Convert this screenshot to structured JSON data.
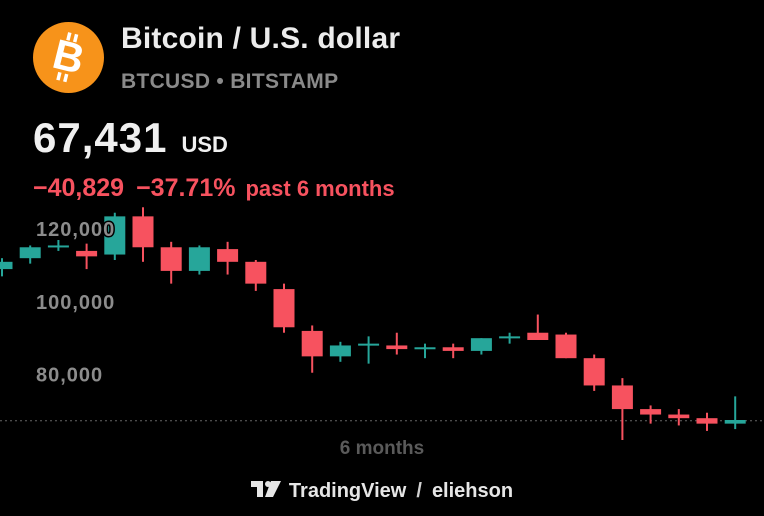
{
  "header": {
    "icon": "bitcoin-icon",
    "icon_color": "#f7931a",
    "title": "Bitcoin / U.S. dollar",
    "subtitle": "BTCUSD • BITSTAMP"
  },
  "quote": {
    "price": "67,431",
    "currency": "USD",
    "change_abs": "−40,829",
    "change_pct": "−37.71%",
    "change_period": "past 6 months",
    "change_color": "#f7525f"
  },
  "chart_data": {
    "type": "candlestick",
    "period_label": "6 months",
    "ylim": [
      62000,
      128000
    ],
    "y_ticks": [
      "120,000",
      "100,000",
      "80,000"
    ],
    "y_tick_values": [
      120000,
      100000,
      80000
    ],
    "last_price": 67431,
    "colors": {
      "up": "#26a69a",
      "down": "#f7525f"
    },
    "candles": [
      {
        "o": 109000,
        "h": 112000,
        "l": 107000,
        "c": 111000
      },
      {
        "o": 112000,
        "h": 115500,
        "l": 110500,
        "c": 115000
      },
      {
        "o": 115500,
        "h": 117000,
        "l": 114000,
        "c": 115500
      },
      {
        "o": 114000,
        "h": 116000,
        "l": 109000,
        "c": 112500
      },
      {
        "o": 113000,
        "h": 124500,
        "l": 111500,
        "c": 123500
      },
      {
        "o": 123500,
        "h": 126000,
        "l": 111000,
        "c": 115000
      },
      {
        "o": 115000,
        "h": 116500,
        "l": 105000,
        "c": 108500
      },
      {
        "o": 108500,
        "h": 115500,
        "l": 107500,
        "c": 115000
      },
      {
        "o": 114500,
        "h": 116500,
        "l": 107500,
        "c": 111000
      },
      {
        "o": 111000,
        "h": 111500,
        "l": 103000,
        "c": 105000
      },
      {
        "o": 103500,
        "h": 105000,
        "l": 91500,
        "c": 93000
      },
      {
        "o": 92000,
        "h": 93500,
        "l": 80500,
        "c": 85000
      },
      {
        "o": 85000,
        "h": 89000,
        "l": 83500,
        "c": 88000
      },
      {
        "o": 88000,
        "h": 90500,
        "l": 83000,
        "c": 88500
      },
      {
        "o": 88000,
        "h": 91500,
        "l": 85500,
        "c": 87000
      },
      {
        "o": 87000,
        "h": 88500,
        "l": 84500,
        "c": 87500
      },
      {
        "o": 87500,
        "h": 88500,
        "l": 84500,
        "c": 86500
      },
      {
        "o": 86500,
        "h": 90000,
        "l": 85500,
        "c": 90000
      },
      {
        "o": 90000,
        "h": 91500,
        "l": 88500,
        "c": 90500
      },
      {
        "o": 91500,
        "h": 96500,
        "l": 89500,
        "c": 89500
      },
      {
        "o": 91000,
        "h": 91500,
        "l": 84500,
        "c": 84500
      },
      {
        "o": 84500,
        "h": 85500,
        "l": 75500,
        "c": 77000
      },
      {
        "o": 77000,
        "h": 79000,
        "l": 59500,
        "c": 70500
      },
      {
        "o": 70500,
        "h": 71500,
        "l": 66500,
        "c": 69000
      },
      {
        "o": 69000,
        "h": 70500,
        "l": 66000,
        "c": 68000
      },
      {
        "o": 68000,
        "h": 69500,
        "l": 64500,
        "c": 66500
      },
      {
        "o": 66500,
        "h": 74000,
        "l": 65000,
        "c": 67500
      }
    ]
  },
  "footer": {
    "brand": "TradingView",
    "separator": "/",
    "author": "eliehson",
    "icon": "tradingview-logo-icon"
  }
}
